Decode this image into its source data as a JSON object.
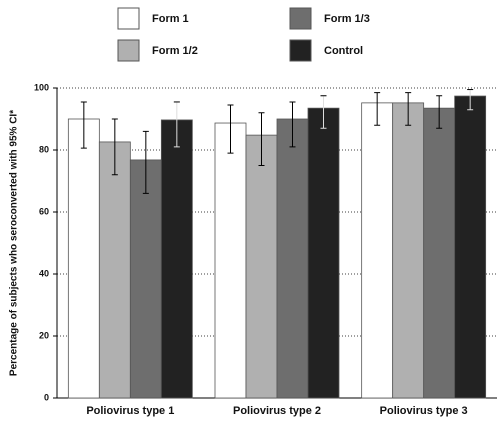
{
  "chart_data": {
    "type": "bar",
    "y_label": "Percentage of subjects who seroconverted with 95% CI*",
    "categories": [
      "Poliovirus type 1",
      "Poliovirus type 2",
      "Poliovirus type 3"
    ],
    "series": [
      {
        "name": "Form 1",
        "color": "#ffffff",
        "values": [
          90,
          88.7,
          95.2
        ],
        "ci_low": [
          80.6,
          79,
          88
        ],
        "ci_high": [
          95.5,
          94.5,
          98.5
        ]
      },
      {
        "name": "Form 1/2",
        "color": "#b0b0b0",
        "values": [
          82.6,
          84.8,
          95.2
        ],
        "ci_low": [
          72,
          75,
          88
        ],
        "ci_high": [
          90,
          92,
          98.5
        ]
      },
      {
        "name": "Form 1/3",
        "color": "#6e6e6e",
        "values": [
          76.8,
          90,
          93.5
        ],
        "ci_low": [
          66,
          81,
          87
        ],
        "ci_high": [
          86,
          95.5,
          97.5
        ]
      },
      {
        "name": "Control",
        "color": "#222222",
        "values": [
          89.7,
          93.5,
          97.4
        ],
        "ci_low": [
          81,
          87,
          93
        ],
        "ci_high": [
          95.5,
          97.5,
          99.5
        ]
      }
    ],
    "ylim": [
      0,
      100
    ],
    "yticks": [
      0,
      20,
      40,
      60,
      80,
      100
    ],
    "grid": true
  }
}
